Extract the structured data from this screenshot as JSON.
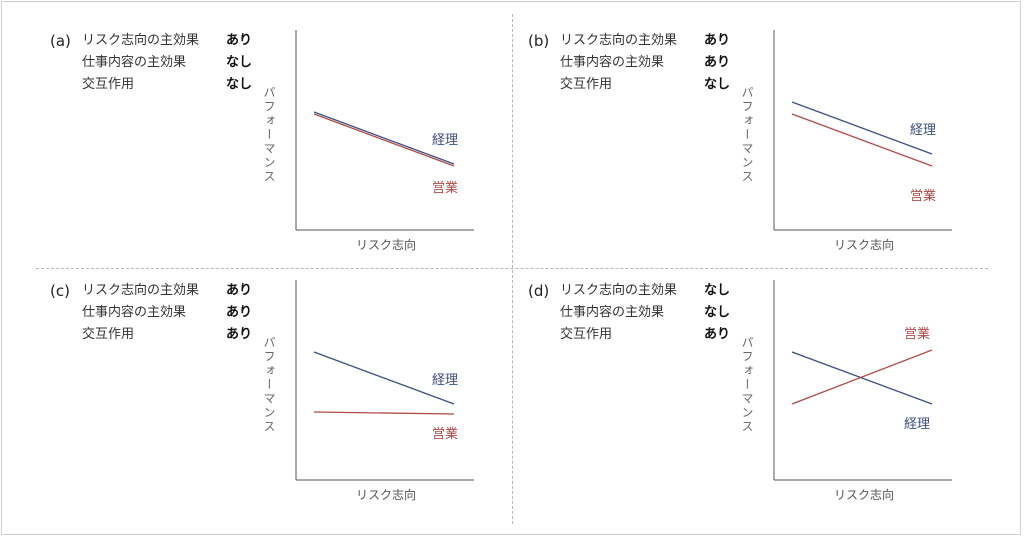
{
  "colors": {
    "keiri": "#3b4f87",
    "eigyo": "#b24a47",
    "axis": "#555555"
  },
  "chart_data": [
    {
      "type": "line",
      "panel_label": "(a)",
      "effects": [
        {
          "name": "リスク志向の主効果",
          "value": "あり"
        },
        {
          "name": "仕事内容の主効果",
          "value": "なし"
        },
        {
          "name": "交互作用",
          "value": "なし"
        }
      ],
      "xlabel": "リスク志向",
      "ylabel": "パフォーマンス",
      "xlim": [
        0,
        1
      ],
      "ylim": [
        0,
        1
      ],
      "x": [
        0,
        1
      ],
      "series": [
        {
          "name": "経理",
          "color": "#3b4f87",
          "values": [
            0.59,
            0.33
          ]
        },
        {
          "name": "営業",
          "color": "#b24a47",
          "values": [
            0.58,
            0.32
          ]
        }
      ]
    },
    {
      "type": "line",
      "panel_label": "(b)",
      "effects": [
        {
          "name": "リスク志向の主効果",
          "value": "あり"
        },
        {
          "name": "仕事内容の主効果",
          "value": "あり"
        },
        {
          "name": "交互作用",
          "value": "なし"
        }
      ],
      "xlabel": "リスク志向",
      "ylabel": "パフォーマンス",
      "xlim": [
        0,
        1
      ],
      "ylim": [
        0,
        1
      ],
      "x": [
        0,
        1
      ],
      "series": [
        {
          "name": "経理",
          "color": "#3b4f87",
          "values": [
            0.64,
            0.38
          ]
        },
        {
          "name": "営業",
          "color": "#b24a47",
          "values": [
            0.58,
            0.32
          ]
        }
      ]
    },
    {
      "type": "line",
      "panel_label": "(c)",
      "effects": [
        {
          "name": "リスク志向の主効果",
          "value": "あり"
        },
        {
          "name": "仕事内容の主効果",
          "value": "あり"
        },
        {
          "name": "交互作用",
          "value": "あり"
        }
      ],
      "xlabel": "リスク志向",
      "ylabel": "パフォーマンス",
      "xlim": [
        0,
        1
      ],
      "ylim": [
        0,
        1
      ],
      "x": [
        0,
        1
      ],
      "series": [
        {
          "name": "経理",
          "color": "#3b4f87",
          "values": [
            0.64,
            0.38
          ]
        },
        {
          "name": "営業",
          "color": "#b24a47",
          "values": [
            0.34,
            0.33
          ]
        }
      ]
    },
    {
      "type": "line",
      "panel_label": "(d)",
      "effects": [
        {
          "name": "リスク志向の主効果",
          "value": "なし"
        },
        {
          "name": "仕事内容の主効果",
          "value": "なし"
        },
        {
          "name": "交互作用",
          "value": "あり"
        }
      ],
      "xlabel": "リスク志向",
      "ylabel": "パフォーマンス",
      "xlim": [
        0,
        1
      ],
      "ylim": [
        0,
        1
      ],
      "x": [
        0,
        1
      ],
      "series": [
        {
          "name": "経理",
          "color": "#3b4f87",
          "values": [
            0.64,
            0.38
          ]
        },
        {
          "name": "営業",
          "color": "#b24a47",
          "values": [
            0.38,
            0.65
          ]
        }
      ]
    }
  ]
}
